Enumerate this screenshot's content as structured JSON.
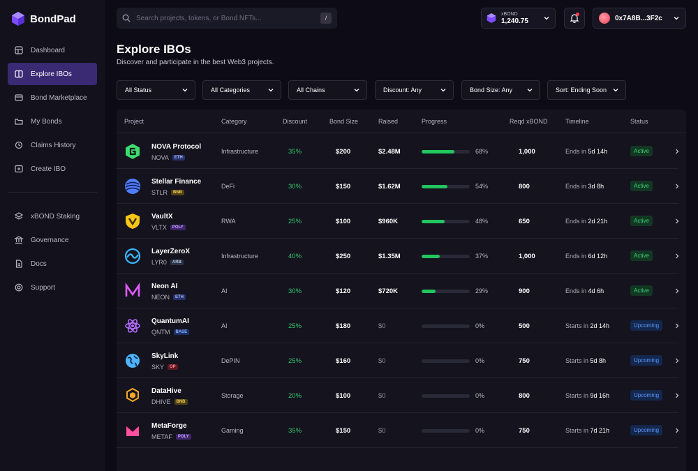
{
  "app": {
    "name": "BondPad"
  },
  "sidebar": {
    "items": [
      {
        "label": "Dashboard",
        "icon": "grid-icon"
      },
      {
        "label": "Explore IBOs",
        "icon": "book-icon",
        "active": true
      },
      {
        "label": "Bond Marketplace",
        "icon": "store-icon"
      },
      {
        "label": "My Bonds",
        "icon": "folder-icon"
      },
      {
        "label": "Claims History",
        "icon": "history-icon"
      },
      {
        "label": "Create IBO",
        "icon": "plus-square-icon"
      }
    ],
    "secondary": [
      {
        "label": "xBOND Staking",
        "icon": "layers-icon"
      },
      {
        "label": "Governance",
        "icon": "bank-icon"
      },
      {
        "label": "Docs",
        "icon": "document-icon"
      },
      {
        "label": "Support",
        "icon": "lifebuoy-icon"
      }
    ]
  },
  "header": {
    "search_placeholder": "Search projects, tokens, or Bond NFTs...",
    "search_shortcut": "/",
    "balance_label": "xBOND",
    "balance_value": "1,240.75",
    "wallet_address": "0x7A8B...3F2c"
  },
  "page": {
    "title": "Explore IBOs",
    "subtitle": "Discover and participate in the best Web3 projects."
  },
  "filters": [
    "All Status",
    "All Categories",
    "All Chains",
    "Discount: Any",
    "Bond Size: Any",
    "Sort: Ending Soon"
  ],
  "table": {
    "columns": [
      "Project",
      "Category",
      "Discount",
      "Bond Size",
      "Raised",
      "Progress",
      "Reqd xBOND",
      "Timeline",
      "Status"
    ],
    "rows": [
      {
        "name": "NOVA Protocol",
        "ticker": "NOVA",
        "chain": "ETH",
        "category": "Infrastructure",
        "discount": "35%",
        "bond_size": "$200",
        "raised": "$2.48M",
        "progress": 68,
        "progress_label": "68%",
        "reqd": "1,000",
        "timeline_prefix": "Ends in",
        "timeline_value": "5d 14h",
        "status": "Active",
        "logo_color": "#3ddc6c",
        "logo": "hex"
      },
      {
        "name": "Stellar Finance",
        "ticker": "STLR",
        "chain": "BNB",
        "category": "DeFi",
        "discount": "30%",
        "bond_size": "$150",
        "raised": "$1.62M",
        "progress": 54,
        "progress_label": "54%",
        "reqd": "800",
        "timeline_prefix": "Ends in",
        "timeline_value": "3d 8h",
        "status": "Active",
        "logo_color": "#4f7dff",
        "logo": "sphere"
      },
      {
        "name": "VaultX",
        "ticker": "VLTX",
        "chain": "POLY",
        "category": "RWA",
        "discount": "25%",
        "bond_size": "$100",
        "raised": "$960K",
        "progress": 48,
        "progress_label": "48%",
        "reqd": "650",
        "timeline_prefix": "Ends in",
        "timeline_value": "2d 21h",
        "status": "Active",
        "logo_color": "#f5c518",
        "logo": "shield"
      },
      {
        "name": "LayerZeroX",
        "ticker": "LYR0",
        "chain": "ARB",
        "category": "Infrastructure",
        "discount": "40%",
        "bond_size": "$250",
        "raised": "$1.35M",
        "progress": 37,
        "progress_label": "37%",
        "reqd": "1,000",
        "timeline_prefix": "Ends in",
        "timeline_value": "6d 12h",
        "status": "Active",
        "logo_color": "#38b6ff",
        "logo": "wave"
      },
      {
        "name": "Neon AI",
        "ticker": "NEON",
        "chain": "ETH",
        "category": "AI",
        "discount": "30%",
        "bond_size": "$120",
        "raised": "$720K",
        "progress": 29,
        "progress_label": "29%",
        "reqd": "900",
        "timeline_prefix": "Ends in",
        "timeline_value": "4d 6h",
        "status": "Active",
        "logo_color": "#e25bff",
        "logo": "n"
      },
      {
        "name": "QuantumAI",
        "ticker": "QNTM",
        "chain": "BASE",
        "category": "AI",
        "discount": "25%",
        "bond_size": "$180",
        "raised": "$0",
        "progress": 0,
        "progress_label": "0%",
        "reqd": "500",
        "timeline_prefix": "Starts in",
        "timeline_value": "2d 14h",
        "status": "Upcoming",
        "logo_color": "#b46bff",
        "logo": "atom"
      },
      {
        "name": "SkyLink",
        "ticker": "SKY",
        "chain": "OP",
        "category": "DePIN",
        "discount": "25%",
        "bond_size": "$160",
        "raised": "$0",
        "progress": 0,
        "progress_label": "0%",
        "reqd": "750",
        "timeline_prefix": "Starts in",
        "timeline_value": "5d 8h",
        "status": "Upcoming",
        "logo_color": "#4fb3ff",
        "logo": "globe"
      },
      {
        "name": "DataHive",
        "ticker": "DHIVE",
        "chain": "BNB",
        "category": "Storage",
        "discount": "20%",
        "bond_size": "$100",
        "raised": "$0",
        "progress": 0,
        "progress_label": "0%",
        "reqd": "800",
        "timeline_prefix": "Starts in",
        "timeline_value": "9d 16h",
        "status": "Upcoming",
        "logo_color": "#f5a623",
        "logo": "hive"
      },
      {
        "name": "MetaForge",
        "ticker": "METAF",
        "chain": "POLY",
        "category": "Gaming",
        "discount": "35%",
        "bond_size": "$150",
        "raised": "$0",
        "progress": 0,
        "progress_label": "0%",
        "reqd": "750",
        "timeline_prefix": "Starts in",
        "timeline_value": "7d 21h",
        "status": "Upcoming",
        "logo_color": "#ff4fa0",
        "logo": "m"
      }
    ]
  }
}
